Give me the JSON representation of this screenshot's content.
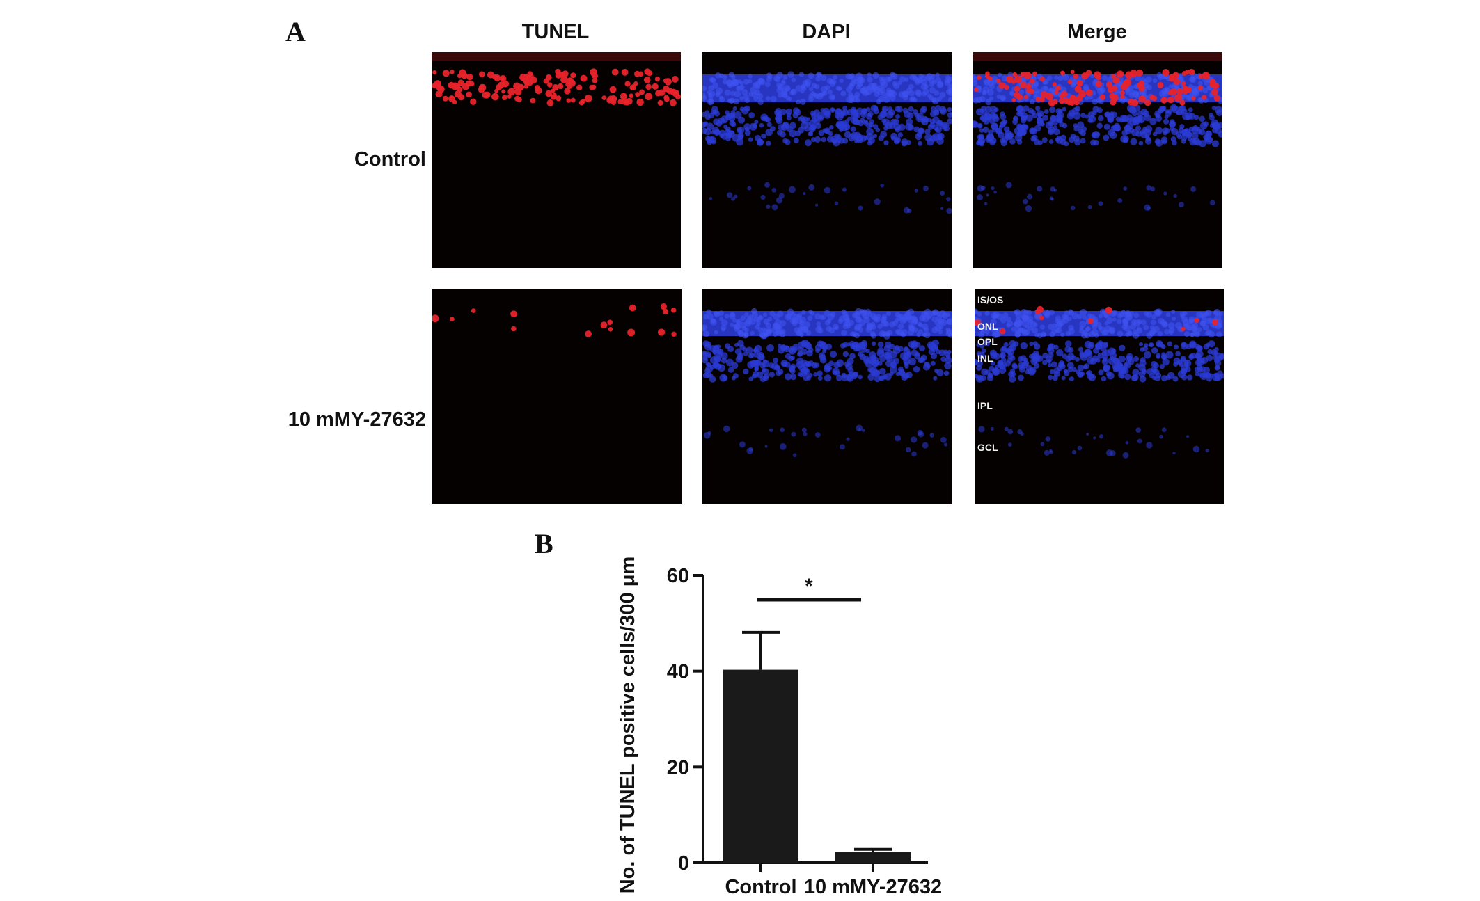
{
  "panel_a": {
    "letter": "A",
    "columns": [
      "TUNEL",
      "DAPI",
      "Merge"
    ],
    "rows": [
      "Control",
      "10 mMY-27632"
    ],
    "layer_labels": [
      "IS/OS",
      "ONL",
      "OPL",
      "INL",
      "IPL",
      "GCL"
    ],
    "colors": {
      "tunel": "#e8232a",
      "dapi": "#2b3bd6",
      "background": "#050101"
    }
  },
  "panel_b": {
    "letter": "B"
  },
  "chart_data": {
    "type": "bar",
    "categories": [
      "Control",
      "10 mMY-27632"
    ],
    "values": [
      40.3,
      2.3
    ],
    "errors": [
      7.8,
      0.5
    ],
    "ylabel": "No. of TUNEL positive cells/300 μm",
    "ylim": [
      0,
      60
    ],
    "yticks": [
      0,
      20,
      40,
      60
    ],
    "significance": {
      "label": "*",
      "between": [
        "Control",
        "10 mMY-27632"
      ]
    },
    "bar_color": "#1a1a1a",
    "grid": false
  }
}
